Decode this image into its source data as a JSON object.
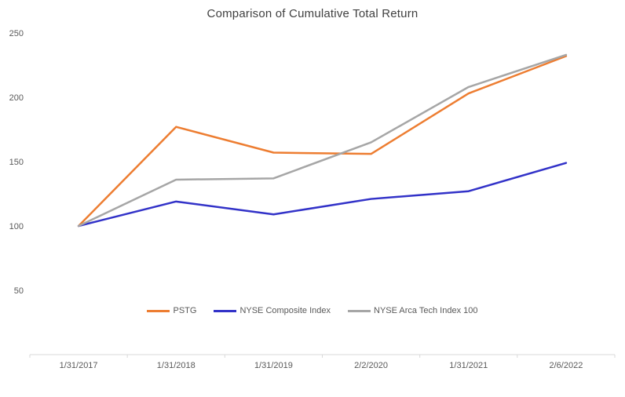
{
  "chart_data": {
    "type": "line",
    "title": "Comparison of Cumulative Total Return",
    "categories": [
      "1/31/2017",
      "1/31/2018",
      "1/31/2019",
      "2/2/2020",
      "1/31/2021",
      "2/6/2022"
    ],
    "series": [
      {
        "name": "PSTG",
        "color": "#ED7D31",
        "values": [
          100,
          177,
          157,
          156,
          203,
          232
        ]
      },
      {
        "name": "NYSE Composite Index",
        "color": "#3232C8",
        "values": [
          100,
          119,
          109,
          121,
          127,
          149
        ]
      },
      {
        "name": "NYSE Arca Tech Index 100",
        "color": "#A6A6A6",
        "values": [
          100,
          136,
          137,
          165,
          208,
          233
        ]
      }
    ],
    "ylim": [
      0,
      250
    ],
    "yticks": [
      50,
      100,
      150,
      200,
      250
    ],
    "grid": false,
    "legend_position": "bottom-center-inside",
    "axis_color": "#D9D9D9",
    "tick_label_color": "#595959",
    "title_color": "#404040"
  }
}
